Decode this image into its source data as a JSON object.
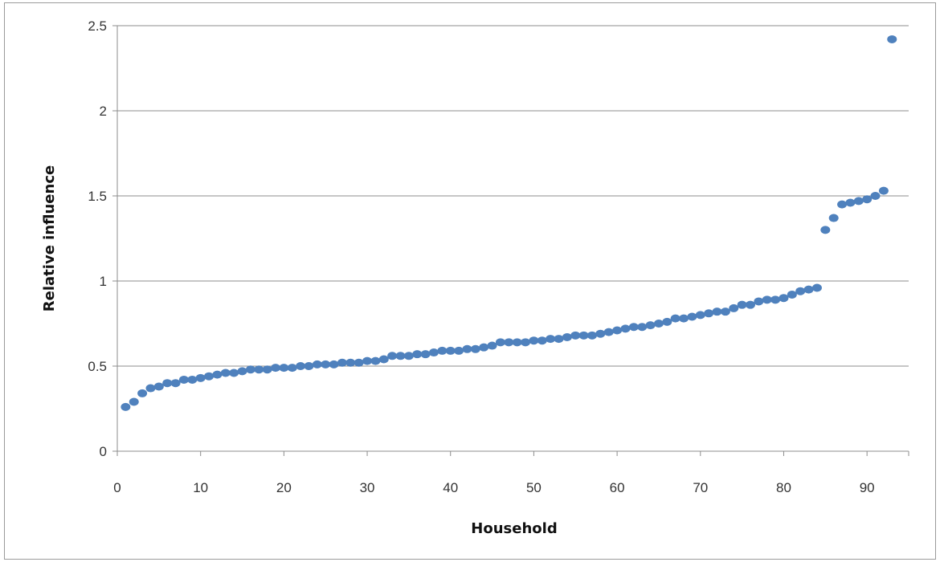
{
  "chart_data": {
    "type": "scatter",
    "xlabel": "Household",
    "ylabel": "Relative influence",
    "xlim": [
      0,
      95
    ],
    "ylim": [
      0,
      2.5
    ],
    "x_ticks": [
      "0",
      "10",
      "20",
      "30",
      "40",
      "50",
      "60",
      "70",
      "80",
      "90"
    ],
    "y_ticks": [
      "0",
      "0.5",
      "1",
      "1.5",
      "2",
      "2.5"
    ],
    "grid": "horizontal",
    "marker_color": "#4f81bd",
    "series": [
      {
        "x": [
          1,
          2,
          3,
          4,
          5,
          6,
          7,
          8,
          9,
          10,
          11,
          12,
          13,
          14,
          15,
          16,
          17,
          18,
          19,
          20,
          21,
          22,
          23,
          24,
          25,
          26,
          27,
          28,
          29,
          30,
          31,
          32,
          33,
          34,
          35,
          36,
          37,
          38,
          39,
          40,
          41,
          42,
          43,
          44,
          45,
          46,
          47,
          48,
          49,
          50,
          51,
          52,
          53,
          54,
          55,
          56,
          57,
          58,
          59,
          60,
          61,
          62,
          63,
          64,
          65,
          66,
          67,
          68,
          69,
          70,
          71,
          72,
          73,
          74,
          75,
          76,
          77,
          78,
          79,
          80,
          81,
          82,
          83,
          84,
          85,
          86,
          87,
          88,
          89,
          90,
          91,
          92,
          93
        ],
        "values": [
          0.26,
          0.29,
          0.34,
          0.37,
          0.38,
          0.4,
          0.4,
          0.42,
          0.42,
          0.43,
          0.44,
          0.45,
          0.46,
          0.46,
          0.47,
          0.48,
          0.48,
          0.48,
          0.49,
          0.49,
          0.49,
          0.5,
          0.5,
          0.51,
          0.51,
          0.51,
          0.52,
          0.52,
          0.52,
          0.53,
          0.53,
          0.54,
          0.56,
          0.56,
          0.56,
          0.57,
          0.57,
          0.58,
          0.59,
          0.59,
          0.59,
          0.6,
          0.6,
          0.61,
          0.62,
          0.64,
          0.64,
          0.64,
          0.64,
          0.65,
          0.65,
          0.66,
          0.66,
          0.67,
          0.68,
          0.68,
          0.68,
          0.69,
          0.7,
          0.71,
          0.72,
          0.73,
          0.73,
          0.74,
          0.75,
          0.76,
          0.78,
          0.78,
          0.79,
          0.8,
          0.81,
          0.82,
          0.82,
          0.84,
          0.86,
          0.86,
          0.88,
          0.89,
          0.89,
          0.9,
          0.92,
          0.94,
          0.95,
          0.96,
          1.3,
          1.37,
          1.45,
          1.46,
          1.47,
          1.48,
          1.5,
          1.53,
          2.42
        ]
      }
    ]
  }
}
